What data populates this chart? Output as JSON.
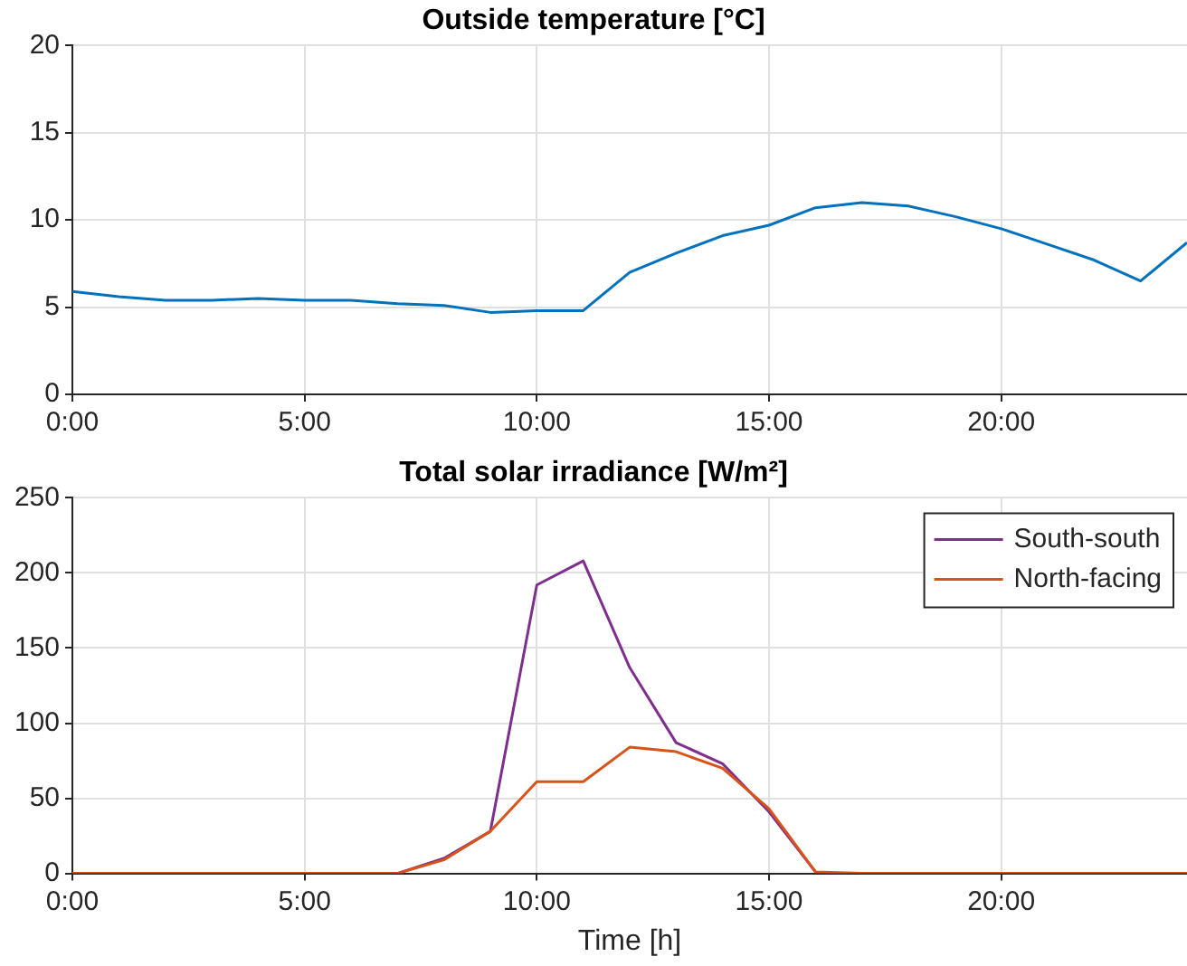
{
  "chart_data": [
    {
      "type": "line",
      "title": "Outside temperature [°C]",
      "x": [
        0,
        1,
        2,
        3,
        4,
        5,
        6,
        7,
        8,
        9,
        10,
        11,
        12,
        13,
        14,
        15,
        16,
        17,
        18,
        19,
        20,
        21,
        22,
        23,
        24
      ],
      "series": [
        {
          "color": "#0072bd",
          "values": [
            5.9,
            5.6,
            5.4,
            5.4,
            5.5,
            5.4,
            5.4,
            5.2,
            5.1,
            4.7,
            4.8,
            4.8,
            7.0,
            8.1,
            9.1,
            9.7,
            10.7,
            11.0,
            10.8,
            10.2,
            9.5,
            8.6,
            7.7,
            6.5,
            8.7
          ]
        }
      ],
      "xlim": [
        0,
        24
      ],
      "xticks": [
        {
          "value": 0,
          "label": "0:00"
        },
        {
          "value": 5,
          "label": "5:00"
        },
        {
          "value": 10,
          "label": "10:00"
        },
        {
          "value": 15,
          "label": "15:00"
        },
        {
          "value": 20,
          "label": "20:00"
        }
      ],
      "ylim": [
        0,
        20
      ],
      "yticks": [
        0,
        5,
        10,
        15,
        20
      ],
      "grid": true,
      "legend": false,
      "marker": "none",
      "line_style": "solid"
    },
    {
      "type": "line",
      "title": "Total solar irradiance [W/m²]",
      "xlabel": "Time [h]",
      "x": [
        0,
        1,
        2,
        3,
        4,
        5,
        6,
        7,
        8,
        9,
        10,
        11,
        12,
        13,
        14,
        15,
        16,
        17,
        18,
        19,
        20,
        21,
        22,
        23,
        24
      ],
      "series": [
        {
          "name": "South-south",
          "color": "#7e2f8e",
          "values": [
            null,
            null,
            null,
            null,
            null,
            null,
            null,
            0,
            10,
            28,
            192,
            208,
            137,
            87,
            73,
            41,
            1,
            null,
            null,
            null,
            null,
            null,
            null,
            null,
            null
          ]
        },
        {
          "name": "North-facing",
          "color": "#d95319",
          "values": [
            0,
            0,
            0,
            0,
            0,
            0,
            0,
            0,
            9,
            28,
            61,
            61,
            84,
            81,
            70,
            43,
            1,
            0,
            0,
            0,
            0,
            0,
            0,
            0,
            0
          ]
        }
      ],
      "xlim": [
        0,
        24
      ],
      "xticks": [
        {
          "value": 0,
          "label": "0:00"
        },
        {
          "value": 5,
          "label": "5:00"
        },
        {
          "value": 10,
          "label": "10:00"
        },
        {
          "value": 15,
          "label": "15:00"
        },
        {
          "value": 20,
          "label": "20:00"
        }
      ],
      "ylim": [
        0,
        250
      ],
      "yticks": [
        0,
        50,
        100,
        150,
        200,
        250
      ],
      "grid": true,
      "legend": "top right",
      "marker": "none",
      "line_style": "solid"
    }
  ]
}
